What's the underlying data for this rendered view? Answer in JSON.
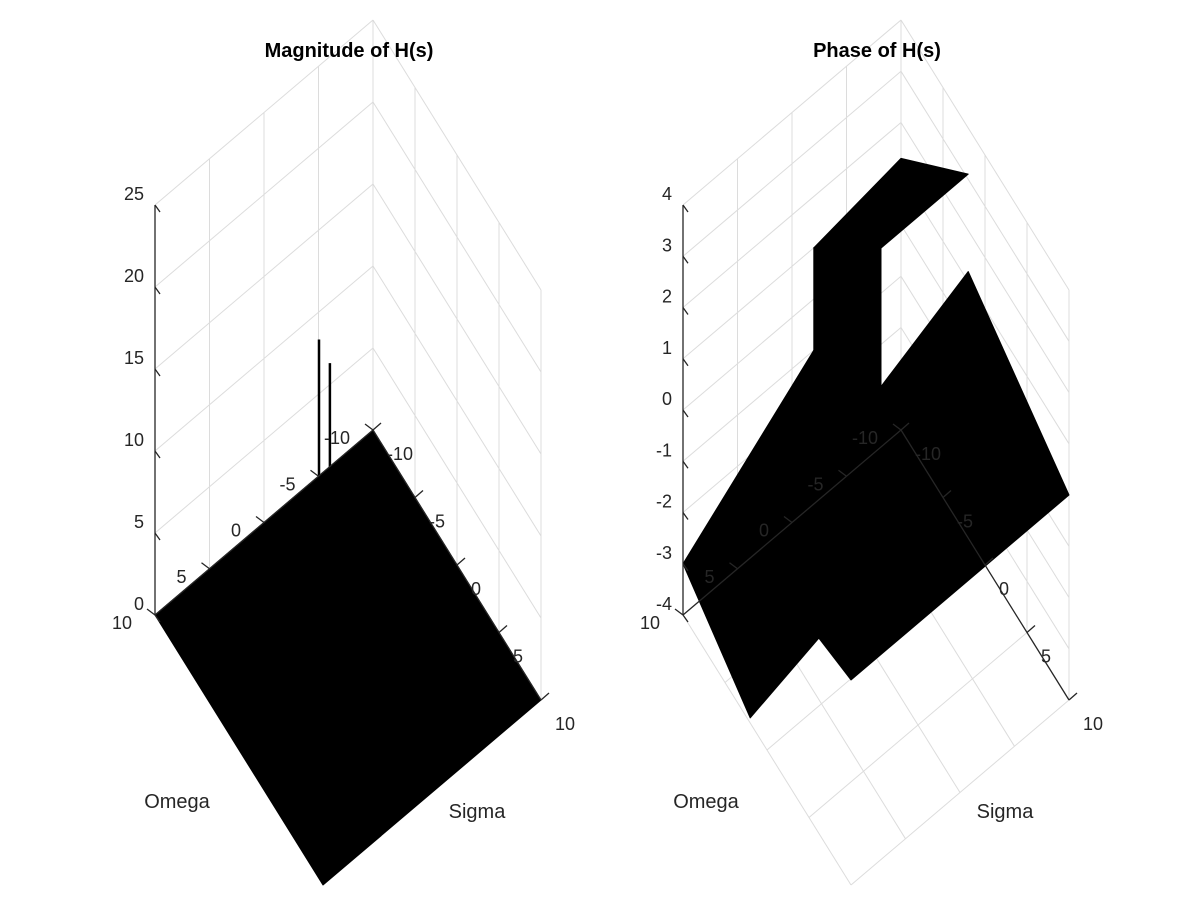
{
  "chart_data": [
    {
      "type": "surface",
      "title": "Magnitude of H(s)",
      "xlabel": "Sigma",
      "ylabel": "Omega",
      "zlabel": "",
      "xlim": [
        -10,
        10
      ],
      "ylim": [
        -10,
        10
      ],
      "zlim": [
        0,
        25
      ],
      "xticks": [
        -10,
        -5,
        0,
        5,
        10
      ],
      "yticks": [
        -10,
        -5,
        0,
        5,
        10
      ],
      "zticks": [
        0,
        5,
        10,
        15,
        20,
        25
      ],
      "grid": true,
      "surface_color": "#000000",
      "base_level": 0,
      "peaks": [
        {
          "sigma": -1.5,
          "omega": 1.5,
          "z": 19
        },
        {
          "sigma": -1.5,
          "omega": 0.5,
          "z": 17
        }
      ]
    },
    {
      "type": "surface",
      "title": "Phase of H(s)",
      "xlabel": "Sigma",
      "ylabel": "Omega",
      "zlabel": "",
      "xlim": [
        -10,
        10
      ],
      "ylim": [
        -10,
        10
      ],
      "zlim": [
        -4,
        4
      ],
      "xticks": [
        -10,
        -5,
        0,
        5,
        10
      ],
      "yticks": [
        -10,
        -5,
        0,
        5,
        10
      ],
      "zticks": [
        -4,
        -3,
        -2,
        -1,
        0,
        1,
        2,
        3,
        4
      ],
      "grid": true,
      "surface_color": "#000000",
      "corner_values": [
        {
          "sigma": -10,
          "omega": 10,
          "z": -3
        },
        {
          "sigma": -10,
          "omega": -10,
          "z": 1.3
        },
        {
          "sigma": 10,
          "omega": -10,
          "z": 0
        },
        {
          "sigma": 10,
          "omega": 10,
          "z": 0
        }
      ],
      "discontinuity_range": [
        -3.1,
        3.1
      ]
    }
  ]
}
